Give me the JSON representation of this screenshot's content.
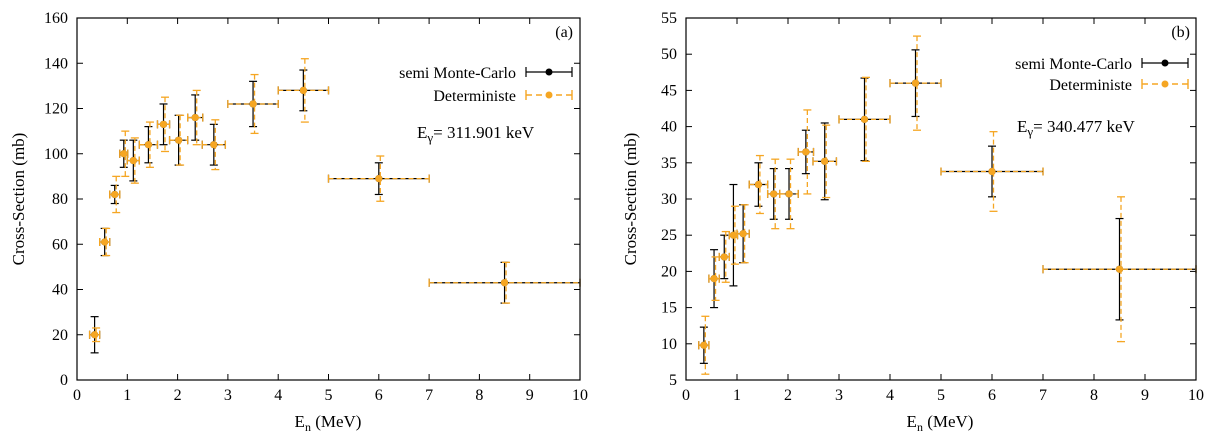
{
  "colors": {
    "semi_mc": "#000000",
    "deterministe": "#f5a623",
    "frame": "#000000"
  },
  "chart_data": [
    {
      "type": "scatter",
      "panel_tag": "(a)",
      "xlabel": "E",
      "xlabel_sub": "n",
      "xlabel_unit": " (MeV)",
      "ylabel": "Cross-Section (mb)",
      "xlim": [
        0,
        10
      ],
      "ylim": [
        0,
        160
      ],
      "xticks": [
        0,
        1,
        2,
        3,
        4,
        5,
        6,
        7,
        8,
        9,
        10
      ],
      "yticks": [
        0,
        20,
        40,
        60,
        80,
        100,
        120,
        140,
        160
      ],
      "legend_position": "top-right",
      "annotation": {
        "prefix": "E",
        "sub": "γ",
        "rest": "= 311.901 keV"
      },
      "series": [
        {
          "name": "semi Monte-Carlo",
          "points": [
            {
              "x": 0.35,
              "y": 20,
              "xerr": 0.1,
              "yerr": 8
            },
            {
              "x": 0.55,
              "y": 61,
              "xerr": 0.1,
              "yerr": 6
            },
            {
              "x": 0.75,
              "y": 82,
              "xerr": 0.1,
              "yerr": 4
            },
            {
              "x": 0.93,
              "y": 100,
              "xerr": 0.08,
              "yerr": 6
            },
            {
              "x": 1.12,
              "y": 97,
              "xerr": 0.12,
              "yerr": 9
            },
            {
              "x": 1.42,
              "y": 104,
              "xerr": 0.18,
              "yerr": 8
            },
            {
              "x": 1.72,
              "y": 113,
              "xerr": 0.12,
              "yerr": 9
            },
            {
              "x": 2.02,
              "y": 106,
              "xerr": 0.18,
              "yerr": 11
            },
            {
              "x": 2.35,
              "y": 116,
              "xerr": 0.15,
              "yerr": 10
            },
            {
              "x": 2.72,
              "y": 104,
              "xerr": 0.23,
              "yerr": 9
            },
            {
              "x": 3.5,
              "y": 122,
              "xerr": 0.5,
              "yerr": 10
            },
            {
              "x": 4.5,
              "y": 128,
              "xerr": 0.5,
              "yerr": 9
            },
            {
              "x": 6.0,
              "y": 89,
              "xerr": 1.0,
              "yerr": 7
            },
            {
              "x": 8.5,
              "y": 43,
              "xerr": 1.5,
              "yerr": 9
            }
          ]
        },
        {
          "name": "Deterministe",
          "points": [
            {
              "x": 0.35,
              "y": 20,
              "xerr": 0.1,
              "yerr": 3
            },
            {
              "x": 0.55,
              "y": 61,
              "xerr": 0.1,
              "yerr": 6
            },
            {
              "x": 0.75,
              "y": 82,
              "xerr": 0.1,
              "yerr": 8
            },
            {
              "x": 0.93,
              "y": 100,
              "xerr": 0.08,
              "yerr": 10
            },
            {
              "x": 1.12,
              "y": 97,
              "xerr": 0.12,
              "yerr": 10
            },
            {
              "x": 1.42,
              "y": 104,
              "xerr": 0.18,
              "yerr": 10
            },
            {
              "x": 1.72,
              "y": 113,
              "xerr": 0.12,
              "yerr": 12
            },
            {
              "x": 2.02,
              "y": 106,
              "xerr": 0.18,
              "yerr": 11
            },
            {
              "x": 2.35,
              "y": 116,
              "xerr": 0.15,
              "yerr": 12
            },
            {
              "x": 2.72,
              "y": 104,
              "xerr": 0.23,
              "yerr": 11
            },
            {
              "x": 3.5,
              "y": 122,
              "xerr": 0.5,
              "yerr": 13
            },
            {
              "x": 4.5,
              "y": 128,
              "xerr": 0.5,
              "yerr": 14
            },
            {
              "x": 6.0,
              "y": 89,
              "xerr": 1.0,
              "yerr": 10
            },
            {
              "x": 8.5,
              "y": 43,
              "xerr": 1.5,
              "yerr": 9
            }
          ]
        }
      ]
    },
    {
      "type": "scatter",
      "panel_tag": "(b)",
      "xlabel": "E",
      "xlabel_sub": "n",
      "xlabel_unit": " (MeV)",
      "ylabel": "Cross-Section (mb)",
      "xlim": [
        0,
        10
      ],
      "ylim": [
        5,
        55
      ],
      "xticks": [
        0,
        1,
        2,
        3,
        4,
        5,
        6,
        7,
        8,
        9,
        10
      ],
      "yticks": [
        5,
        10,
        15,
        20,
        25,
        30,
        35,
        40,
        45,
        50,
        55
      ],
      "legend_position": "top-right",
      "annotation": {
        "prefix": "E",
        "sub": "γ",
        "rest": "= 340.477 keV"
      },
      "series": [
        {
          "name": "semi Monte-Carlo",
          "points": [
            {
              "x": 0.35,
              "y": 9.8,
              "xerr": 0.1,
              "yerr": 2.5
            },
            {
              "x": 0.55,
              "y": 19,
              "xerr": 0.1,
              "yerr": 4
            },
            {
              "x": 0.75,
              "y": 22,
              "xerr": 0.1,
              "yerr": 3
            },
            {
              "x": 0.93,
              "y": 25,
              "xerr": 0.08,
              "yerr": 7
            },
            {
              "x": 1.12,
              "y": 25.2,
              "xerr": 0.12,
              "yerr": 4
            },
            {
              "x": 1.42,
              "y": 32,
              "xerr": 0.18,
              "yerr": 3
            },
            {
              "x": 1.72,
              "y": 30.7,
              "xerr": 0.12,
              "yerr": 3.5
            },
            {
              "x": 2.02,
              "y": 30.7,
              "xerr": 0.18,
              "yerr": 3.5
            },
            {
              "x": 2.35,
              "y": 36.5,
              "xerr": 0.15,
              "yerr": 3
            },
            {
              "x": 2.72,
              "y": 35.2,
              "xerr": 0.23,
              "yerr": 5.3
            },
            {
              "x": 3.5,
              "y": 41,
              "xerr": 0.5,
              "yerr": 5.7
            },
            {
              "x": 4.5,
              "y": 46,
              "xerr": 0.5,
              "yerr": 4.6
            },
            {
              "x": 6.0,
              "y": 33.8,
              "xerr": 1.0,
              "yerr": 3.5
            },
            {
              "x": 8.5,
              "y": 20.3,
              "xerr": 1.5,
              "yerr": 7
            }
          ]
        },
        {
          "name": "Deterministe",
          "points": [
            {
              "x": 0.35,
              "y": 9.8,
              "xerr": 0.1,
              "yerr": 4
            },
            {
              "x": 0.55,
              "y": 19,
              "xerr": 0.1,
              "yerr": 3
            },
            {
              "x": 0.75,
              "y": 22,
              "xerr": 0.1,
              "yerr": 3.5
            },
            {
              "x": 0.93,
              "y": 25,
              "xerr": 0.08,
              "yerr": 4
            },
            {
              "x": 1.12,
              "y": 25.2,
              "xerr": 0.12,
              "yerr": 4
            },
            {
              "x": 1.42,
              "y": 32,
              "xerr": 0.18,
              "yerr": 4
            },
            {
              "x": 1.72,
              "y": 30.7,
              "xerr": 0.12,
              "yerr": 4.8
            },
            {
              "x": 2.02,
              "y": 30.7,
              "xerr": 0.18,
              "yerr": 4.8
            },
            {
              "x": 2.35,
              "y": 36.5,
              "xerr": 0.15,
              "yerr": 5.8
            },
            {
              "x": 2.72,
              "y": 35.2,
              "xerr": 0.23,
              "yerr": 5
            },
            {
              "x": 3.5,
              "y": 41,
              "xerr": 0.5,
              "yerr": 5.8
            },
            {
              "x": 4.5,
              "y": 46,
              "xerr": 0.5,
              "yerr": 6.5
            },
            {
              "x": 6.0,
              "y": 33.8,
              "xerr": 1.0,
              "yerr": 5.5
            },
            {
              "x": 8.5,
              "y": 20.3,
              "xerr": 1.5,
              "yerr": 10
            }
          ]
        }
      ]
    }
  ]
}
